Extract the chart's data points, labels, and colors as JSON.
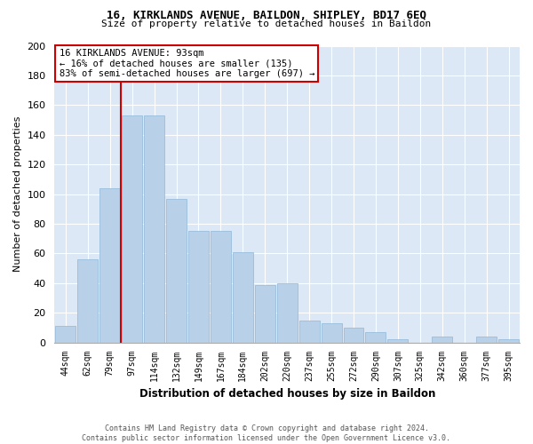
{
  "title1": "16, KIRKLANDS AVENUE, BAILDON, SHIPLEY, BD17 6EQ",
  "title2": "Size of property relative to detached houses in Baildon",
  "xlabel": "Distribution of detached houses by size in Baildon",
  "ylabel": "Number of detached properties",
  "categories": [
    "44sqm",
    "62sqm",
    "79sqm",
    "97sqm",
    "114sqm",
    "132sqm",
    "149sqm",
    "167sqm",
    "184sqm",
    "202sqm",
    "220sqm",
    "237sqm",
    "255sqm",
    "272sqm",
    "290sqm",
    "307sqm",
    "325sqm",
    "342sqm",
    "360sqm",
    "377sqm",
    "395sqm"
  ],
  "values": [
    11,
    56,
    104,
    153,
    153,
    97,
    75,
    75,
    61,
    39,
    40,
    15,
    13,
    10,
    7,
    2,
    0,
    4,
    0,
    4,
    2
  ],
  "bar_color": "#b8d0e8",
  "bar_edge_color": "#90b8d8",
  "plot_bg_color": "#dce8f5",
  "grid_color": "#ffffff",
  "red_line_color": "#cc0000",
  "red_line_x": 2.5,
  "annotation_text": "16 KIRKLANDS AVENUE: 93sqm\n← 16% of detached houses are smaller (135)\n83% of semi-detached houses are larger (697) →",
  "annotation_box_color": "white",
  "annotation_box_edge": "#cc0000",
  "ylim": [
    0,
    200
  ],
  "yticks": [
    0,
    20,
    40,
    60,
    80,
    100,
    120,
    140,
    160,
    180,
    200
  ],
  "footer": "Contains HM Land Registry data © Crown copyright and database right 2024.\nContains public sector information licensed under the Open Government Licence v3.0."
}
